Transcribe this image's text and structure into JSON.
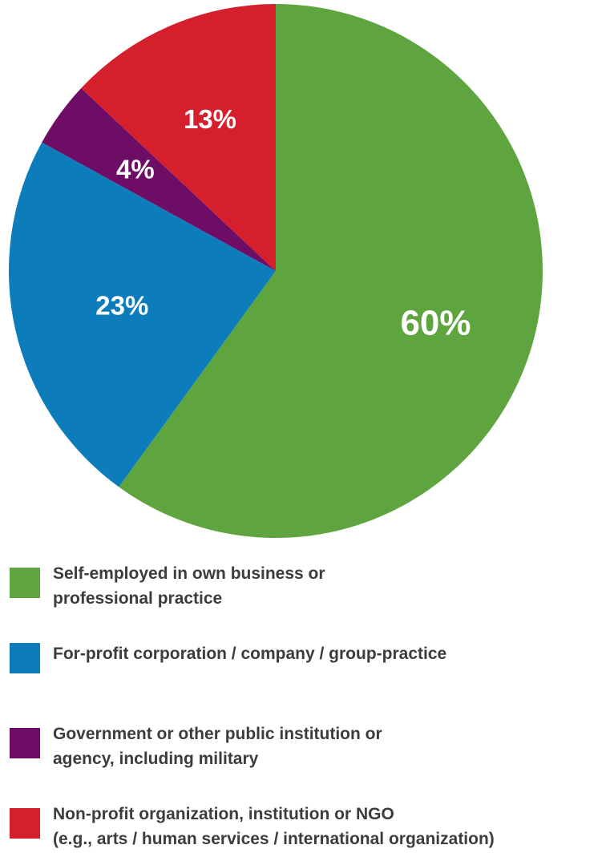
{
  "chart_data": {
    "type": "pie",
    "series": [
      {
        "label": "Self-employed in own business or professional practice",
        "value": 60,
        "value_label": "60%",
        "color": "#5fa53f"
      },
      {
        "label": "For-profit corporation / company / group-practice",
        "value": 23,
        "value_label": "23%",
        "color": "#0c7cbb"
      },
      {
        "label": "Government or other public institution or agency, including military",
        "value": 4,
        "value_label": "4%",
        "color": "#6d0d65"
      },
      {
        "label": "Non-profit organization, institution or NGO (e.g., arts / human services / international organization)",
        "value": 13,
        "value_label": "13%",
        "color": "#d61f2c"
      }
    ],
    "legend_placement": "bottom",
    "legend": [
      {
        "lines": [
          "Self-employed in own business or",
          "professional practice"
        ]
      },
      {
        "lines": [
          "For-profit corporation / company / group-practice"
        ]
      },
      {
        "lines": [
          "Government or other public institution or",
          "agency, including military"
        ]
      },
      {
        "lines": [
          "Non-profit organization, institution or NGO",
          "(e.g., arts / human services / international organization)"
        ]
      }
    ]
  }
}
